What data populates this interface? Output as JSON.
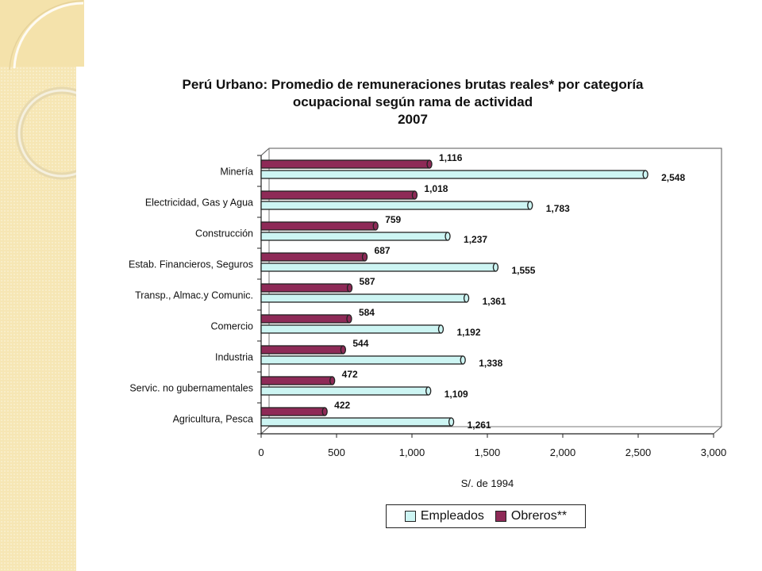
{
  "colors": {
    "empleados": "#cdf5f3",
    "obreros": "#8e2a57",
    "plot_bg": "#ffffff",
    "bar_edge": "#222222",
    "deco": "#f6e6b4"
  },
  "chart_data": {
    "type": "bar",
    "orientation": "horizontal",
    "title_lines": [
      "Perú Urbano: Promedio de remuneraciones brutas reales* por categoría",
      "ocupacional según rama de actividad",
      "2007"
    ],
    "xlabel": "S/. de 1994",
    "ylabel": "",
    "xlim": [
      0,
      3000
    ],
    "xticks": [
      0,
      500,
      1000,
      1500,
      2000,
      2500,
      3000
    ],
    "xtick_labels": [
      "0",
      "500",
      "1,000",
      "1,500",
      "2,000",
      "2,500",
      "3,000"
    ],
    "grid": false,
    "legend_position": "bottom",
    "categories": [
      "Minería",
      "Electricidad, Gas y Agua",
      "Construcción",
      "Estab. Financieros, Seguros",
      "Transp., Almac.y Comunic.",
      "Comercio",
      "Industria",
      "Servic. no gubernamentales",
      "Agricultura, Pesca"
    ],
    "series": [
      {
        "name": "Obreros**",
        "values": [
          1116,
          1018,
          759,
          687,
          587,
          584,
          544,
          472,
          422
        ],
        "labels": [
          "1,116",
          "1,018",
          "759",
          "687",
          "587",
          "584",
          "544",
          "472",
          "422"
        ]
      },
      {
        "name": "Empleados",
        "values": [
          2548,
          1783,
          1237,
          1555,
          1361,
          1192,
          1338,
          1109,
          1261
        ],
        "labels": [
          "2,548",
          "1,783",
          "1,237",
          "1,555",
          "1,361",
          "1,192",
          "1,338",
          "1,109",
          "1,261"
        ]
      }
    ]
  },
  "legend": {
    "empleados_label": "Empleados",
    "obreros_label": "Obreros**"
  }
}
